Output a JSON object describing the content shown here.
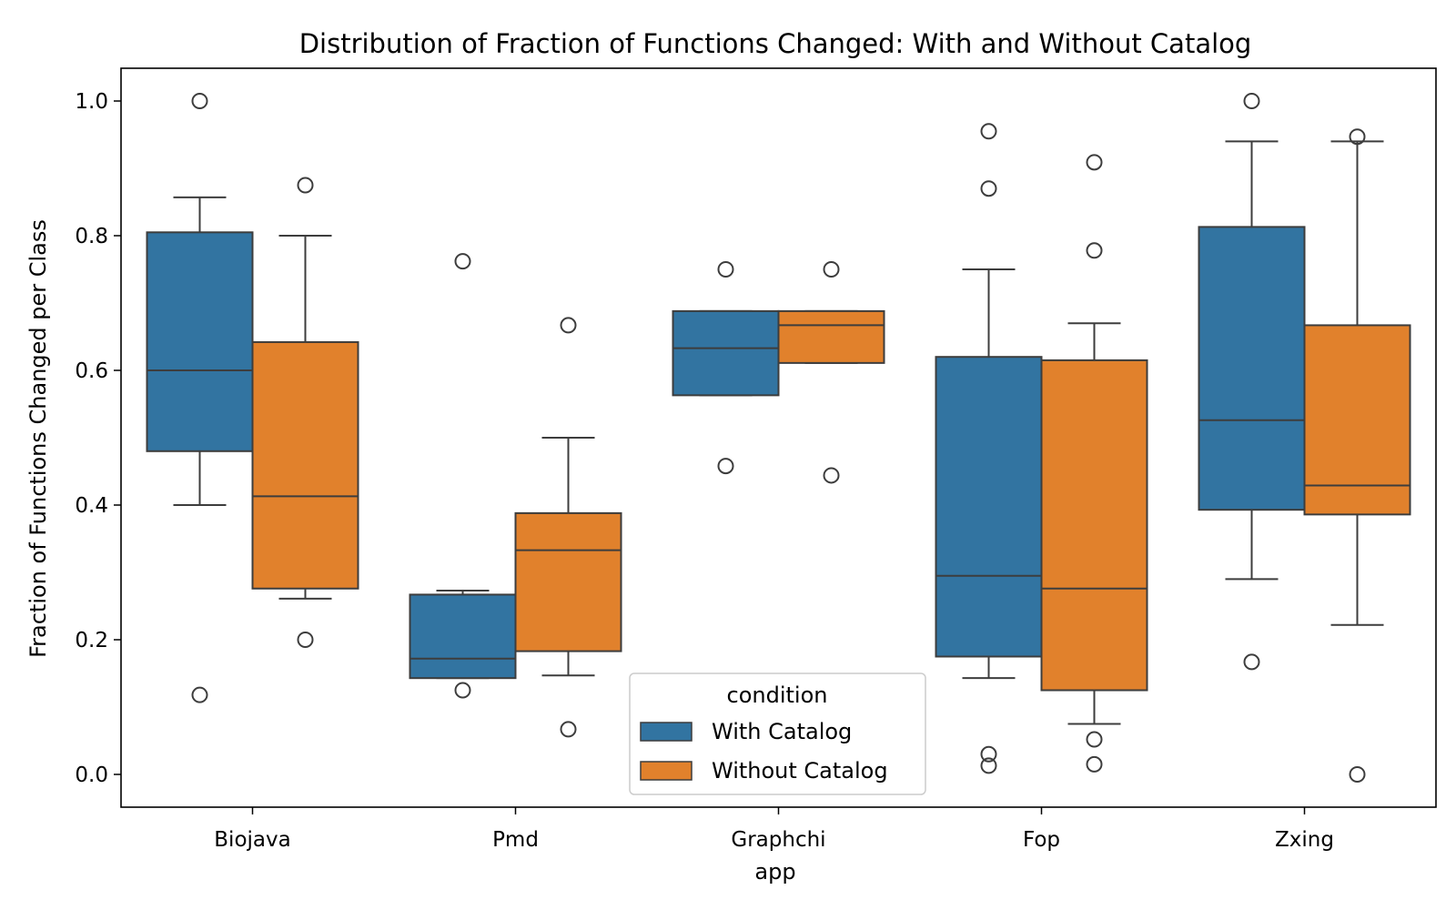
{
  "chart_data": {
    "type": "boxplot",
    "title": "Distribution of Fraction of Functions Changed: With and Without Catalog",
    "xlabel": "app",
    "ylabel": "Fraction of Functions Changed per Class",
    "ylim": [
      -0.05,
      1.05
    ],
    "yticks": [
      "0.0",
      "0.2",
      "0.4",
      "0.6",
      "0.8",
      "1.0"
    ],
    "categories": [
      "Biojava",
      "Pmd",
      "Graphchi",
      "Fop",
      "Zxing"
    ],
    "legend": {
      "title": "condition",
      "position": "lower-center"
    },
    "series": [
      {
        "name": "With Catalog",
        "color": "#3274a1",
        "boxes": [
          {
            "whislo": 0.4,
            "q1": 0.48,
            "med": 0.6,
            "q3": 0.805,
            "whishi": 0.857,
            "fliers": [
              1.0,
              0.118
            ]
          },
          {
            "whislo": 0.143,
            "q1": 0.143,
            "med": 0.172,
            "q3": 0.267,
            "whishi": 0.273,
            "fliers": [
              0.762,
              0.125
            ]
          },
          {
            "whislo": 0.563,
            "q1": 0.563,
            "med": 0.633,
            "q3": 0.688,
            "whishi": 0.688,
            "fliers": [
              0.75,
              0.458
            ]
          },
          {
            "whislo": 0.143,
            "q1": 0.175,
            "med": 0.295,
            "q3": 0.62,
            "whishi": 0.75,
            "fliers": [
              0.955,
              0.87,
              0.03,
              0.013
            ]
          },
          {
            "whislo": 0.29,
            "q1": 0.393,
            "med": 0.526,
            "q3": 0.813,
            "whishi": 0.94,
            "fliers": [
              1.0,
              0.167
            ]
          }
        ]
      },
      {
        "name": "Without Catalog",
        "color": "#e1812c",
        "boxes": [
          {
            "whislo": 0.261,
            "q1": 0.276,
            "med": 0.413,
            "q3": 0.642,
            "whishi": 0.8,
            "fliers": [
              0.875,
              0.2
            ]
          },
          {
            "whislo": 0.147,
            "q1": 0.183,
            "med": 0.333,
            "q3": 0.388,
            "whishi": 0.5,
            "fliers": [
              0.667,
              0.067
            ]
          },
          {
            "whislo": 0.611,
            "q1": 0.611,
            "med": 0.667,
            "q3": 0.688,
            "whishi": 0.688,
            "fliers": [
              0.75,
              0.444
            ]
          },
          {
            "whislo": 0.075,
            "q1": 0.125,
            "med": 0.276,
            "q3": 0.615,
            "whishi": 0.67,
            "fliers": [
              0.909,
              0.778,
              0.052,
              0.015
            ]
          },
          {
            "whislo": 0.222,
            "q1": 0.386,
            "med": 0.429,
            "q3": 0.667,
            "whishi": 0.94,
            "fliers": [
              0.947,
              0.0
            ]
          }
        ]
      }
    ]
  }
}
